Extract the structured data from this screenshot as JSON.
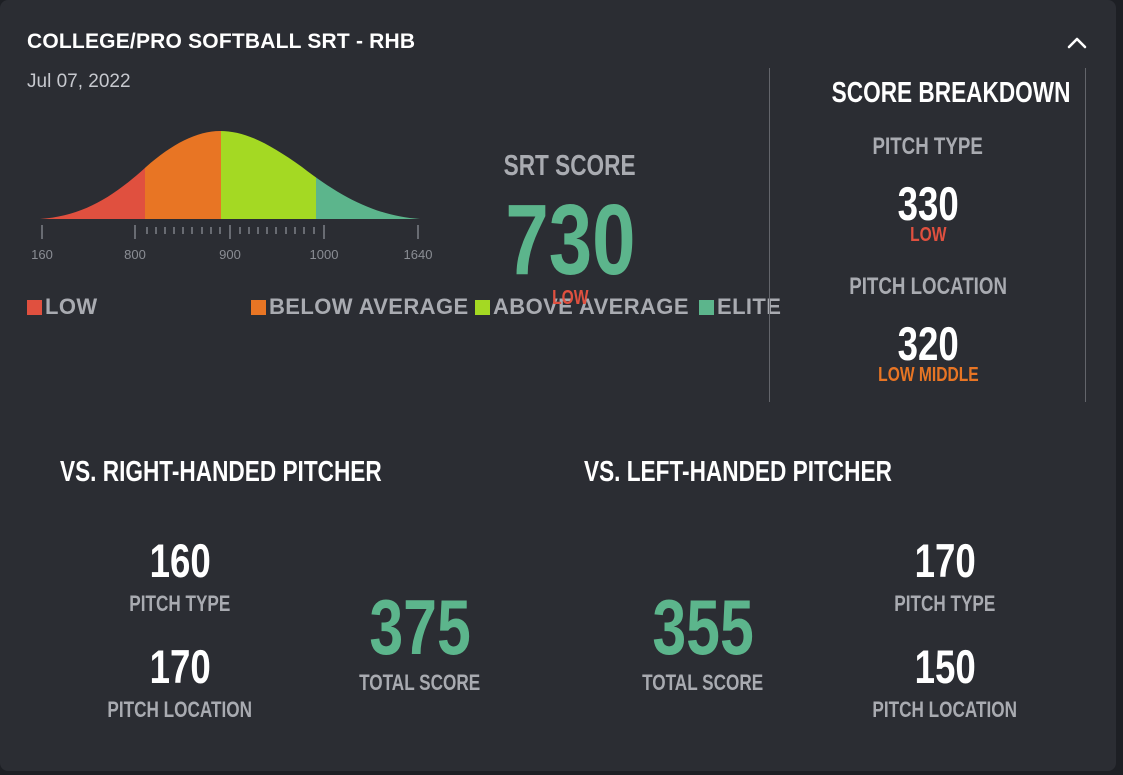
{
  "header": {
    "title": "COLLEGE/PRO SOFTBALL SRT - RHB",
    "date": "Jul 07, 2022"
  },
  "distribution": {
    "ticks": [
      "160",
      "800",
      "900",
      "1000",
      "1640"
    ],
    "segments": [
      {
        "name": "LOW",
        "color": "#e0503f"
      },
      {
        "name": "BELOW AVERAGE",
        "color": "#e87524"
      },
      {
        "name": "ABOVE AVERAGE",
        "color": "#a4d923"
      },
      {
        "name": "ELITE",
        "color": "#5cb58c"
      }
    ]
  },
  "srt": {
    "label": "SRT SCORE",
    "value": "730",
    "level": "LOW"
  },
  "breakdown": {
    "title": "SCORE BREAKDOWN",
    "pitch_type_label": "PITCH TYPE",
    "pitch_type_value": "330",
    "pitch_type_level": "LOW",
    "pitch_location_label": "PITCH LOCATION",
    "pitch_location_value": "320",
    "pitch_location_level": "LOW MIDDLE"
  },
  "vs_right": {
    "title": "VS. RIGHT-HANDED PITCHER",
    "pitch_type_value": "160",
    "pitch_type_label": "PITCH TYPE",
    "pitch_location_value": "170",
    "pitch_location_label": "PITCH LOCATION",
    "total_value": "375",
    "total_label": "TOTAL SCORE"
  },
  "vs_left": {
    "title": "VS. LEFT-HANDED PITCHER",
    "total_value": "355",
    "total_label": "TOTAL SCORE",
    "pitch_type_value": "170",
    "pitch_type_label": "PITCH TYPE",
    "pitch_location_value": "150",
    "pitch_location_label": "PITCH LOCATION"
  },
  "colors": {
    "accent_green": "#5cb58c",
    "low_red": "#e0503f",
    "low_middle_orange": "#e87524",
    "card_bg": "#2b2d33"
  },
  "icons": {
    "collapse": "chevron-up-icon"
  }
}
